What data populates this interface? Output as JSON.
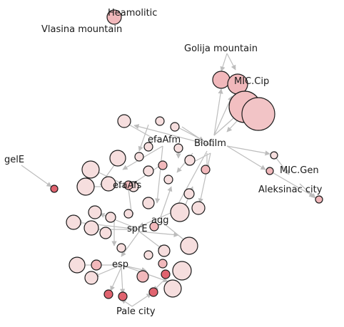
{
  "network": {
    "labels": {
      "haemolitic": "Heamolitic",
      "vlasina": "Vlasina mountain",
      "golija": "Golija mountain",
      "mic_cip": "MIC.Cip",
      "biofilm": "Biofilm",
      "efaafm": "efaAfm",
      "efaafs": "efaAfs",
      "gele": "gelE",
      "mic_gen": "MIC.Gen",
      "aleksinac": "Aleksinac city",
      "agg": "agg",
      "spre": "sprE",
      "esp": "esp",
      "pale": "Pale city"
    },
    "colors": {
      "edge": "#bdbdbd",
      "node_fill_light": "#f6dede",
      "node_fill_mid": "#f1b8bb",
      "node_fill_dark": "#e0636f",
      "node_stroke": "#1a1a1a"
    }
  }
}
